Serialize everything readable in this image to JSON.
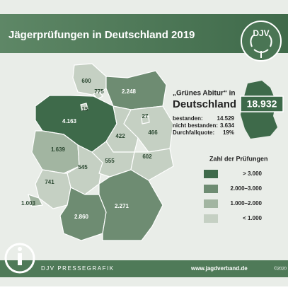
{
  "header": {
    "title": "Jägerprüfungen in Deutschland 2019",
    "logo": "DJV"
  },
  "states": [
    {
      "label": "600",
      "color": "#c5d0c3"
    },
    {
      "label": "775",
      "color": "#c5d0c3"
    },
    {
      "label": "2.248",
      "color": "#6e8c72"
    },
    {
      "label": "4.163",
      "color": "#3e6a4a"
    },
    {
      "label": "15",
      "color": "#c5d0c3"
    },
    {
      "label": "466",
      "color": "#c5d0c3"
    },
    {
      "label": "27",
      "color": "#c5d0c3"
    },
    {
      "label": "422",
      "color": "#c5d0c3"
    },
    {
      "label": "1.639",
      "color": "#a2b5a1"
    },
    {
      "label": "545",
      "color": "#c5d0c3"
    },
    {
      "label": "555",
      "color": "#c5d0c3"
    },
    {
      "label": "602",
      "color": "#c5d0c3"
    },
    {
      "label": "741",
      "color": "#c5d0c3"
    },
    {
      "label": "1.003",
      "color": "#a2b5a1"
    },
    {
      "label": "2.860",
      "color": "#6e8c72"
    },
    {
      "label": "2.271",
      "color": "#6e8c72"
    }
  ],
  "summary": {
    "heading": "„Grünes Abitur“ in",
    "subheading": "Deutschland",
    "total": "18.932",
    "stats": [
      {
        "label": "bestanden:",
        "value": "14.529"
      },
      {
        "label": "nicht bestanden:",
        "value": "3.634"
      },
      {
        "label": "Durchfallquote:",
        "value": "19%"
      }
    ]
  },
  "legend": {
    "title": "Zahl der Prüfungen",
    "items": [
      {
        "label": "> 3.000",
        "color": "#3e6a4a"
      },
      {
        "label": "2.000–3.000",
        "color": "#6e8c72"
      },
      {
        "label": "1.000–2.000",
        "color": "#a2b5a1"
      },
      {
        "label": "< 1.000",
        "color": "#c5d0c3"
      }
    ]
  },
  "footer": {
    "left": "DJV PRESSEGRAFIK",
    "url": "www.jagdverband.de",
    "copyright": "©2020"
  }
}
